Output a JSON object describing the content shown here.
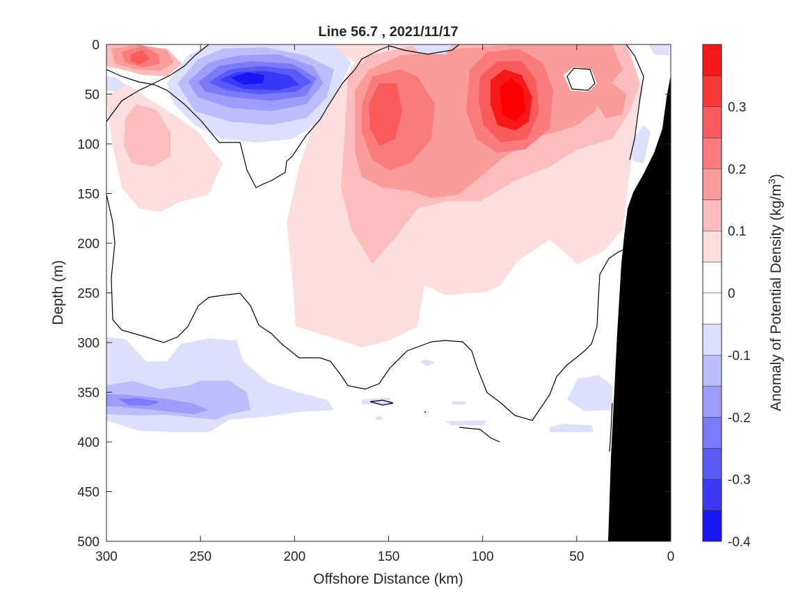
{
  "chart_data": {
    "type": "filled-contour",
    "title": "Line 56.7 , 2021/11/17",
    "xlabel": "Offshore Distance (km)",
    "ylabel": "Depth (m)",
    "colorbar_label": "Anomaly of Potential Density (kg/m",
    "colorbar_label_sup": "3",
    "colorbar_label_close": ")",
    "x_reversed": true,
    "y_reversed": true,
    "xlim": [
      0,
      300
    ],
    "ylim": [
      0,
      500
    ],
    "x_ticks": [
      300,
      250,
      200,
      150,
      100,
      50,
      0
    ],
    "y_ticks": [
      0,
      50,
      100,
      150,
      200,
      250,
      300,
      350,
      400,
      450,
      500
    ],
    "clim": [
      -0.4,
      0.4
    ],
    "level_step": 0.05,
    "colorbar_ticks": [
      0.3,
      0.2,
      0.1,
      0,
      -0.1,
      -0.2,
      -0.3,
      -0.4
    ],
    "colorbar_tick_labels": [
      "0.3",
      "0.2",
      "0.1",
      "0",
      "-0.1",
      "-0.2",
      "-0.3",
      "-0.4"
    ],
    "colors": {
      "pos": [
        "#fddede",
        "#fcbdbd",
        "#fb9c9c",
        "#fa7b7b",
        "#f95a5a",
        "#f73939",
        "#f61818",
        "#ff0000"
      ],
      "neg": [
        "#dedefd",
        "#bdbdfc",
        "#9c9cfb",
        "#7b7bfa",
        "#5a5af9",
        "#3939f7",
        "#1818f6",
        "#0000ff"
      ],
      "bottom": "#000000",
      "contour": "#000000"
    },
    "zero_contour_level": 0,
    "features": [
      {
        "type": "positive-core",
        "x": 285,
        "depth": 15,
        "anomaly": 0.22
      },
      {
        "type": "negative-core",
        "x": 220,
        "depth": 35,
        "anomaly": -0.32
      },
      {
        "type": "positive-core",
        "x": 150,
        "depth": 70,
        "anomaly": 0.27
      },
      {
        "type": "positive-core",
        "x": 85,
        "depth": 75,
        "anomaly": 0.36
      },
      {
        "type": "positive-core",
        "x": 35,
        "depth": 20,
        "anomaly": 0.22
      },
      {
        "type": "negative-core",
        "x": 270,
        "depth": 360,
        "anomaly": -0.2
      }
    ],
    "bottom_profile": {
      "x": [
        0,
        0,
        3,
        10,
        18,
        22,
        25,
        26,
        27,
        28,
        30,
        32,
        34,
        300
      ],
      "depth": [
        500,
        30,
        60,
        120,
        150,
        170,
        190,
        220,
        250,
        300,
        360,
        420,
        500,
        500
      ]
    }
  }
}
